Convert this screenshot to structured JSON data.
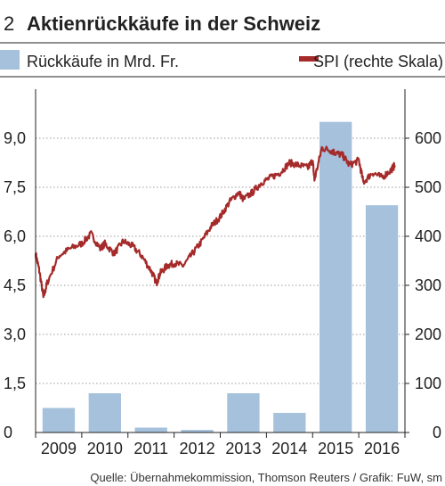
{
  "header": {
    "number": "2",
    "title": "Aktienrückkäufe in der Schweiz"
  },
  "source": "Quelle: Übernahmekommission, Thomson Reuters / Grafik: FuW, sm",
  "colors": {
    "bar": "#a6c1dc",
    "line": "#a52a2a",
    "grid": "#9a9a9a",
    "text": "#222222"
  },
  "chart_data": {
    "type": "bar",
    "categories": [
      "2009",
      "2010",
      "2011",
      "2012",
      "2013",
      "2014",
      "2015",
      "2016"
    ],
    "series": [
      {
        "name": "Rückkäufe in Mrd. Fr.",
        "type": "bar",
        "axis": "left",
        "values": [
          0.75,
          1.2,
          0.15,
          0.08,
          1.2,
          0.6,
          9.5,
          6.95
        ]
      },
      {
        "name": "SPI (rechte Skala)",
        "type": "line",
        "axis": "right",
        "x": [
          2009.0,
          2009.08,
          2009.17,
          2009.25,
          2009.5,
          2009.75,
          2010.0,
          2010.2,
          2010.4,
          2010.5,
          2010.7,
          2010.9,
          2011.1,
          2011.3,
          2011.5,
          2011.62,
          2011.7,
          2011.85,
          2012.0,
          2012.2,
          2012.4,
          2012.6,
          2012.8,
          2013.0,
          2013.2,
          2013.4,
          2013.5,
          2013.7,
          2013.9,
          2014.1,
          2014.3,
          2014.5,
          2014.7,
          2014.9,
          2015.0,
          2015.04,
          2015.2,
          2015.4,
          2015.5,
          2015.65,
          2015.8,
          2016.0,
          2016.1,
          2016.3,
          2016.5,
          2016.7,
          2016.78
        ],
        "values": [
          365,
          330,
          275,
          305,
          360,
          375,
          385,
          405,
          375,
          385,
          365,
          390,
          380,
          360,
          330,
          305,
          325,
          340,
          345,
          340,
          365,
          390,
          420,
          440,
          470,
          490,
          475,
          490,
          510,
          520,
          530,
          550,
          545,
          540,
          555,
          515,
          580,
          575,
          570,
          565,
          545,
          555,
          510,
          530,
          520,
          535,
          545
        ]
      }
    ],
    "y_left": {
      "ticks": [
        "0",
        "1,5",
        "3,0",
        "4,5",
        "6,0",
        "7,5",
        "9,0"
      ],
      "values": [
        0,
        1.5,
        3,
        4.5,
        6,
        7.5,
        9
      ],
      "ylim": [
        0,
        10.5
      ]
    },
    "y_right": {
      "ticks": [
        "0",
        "100",
        "200",
        "300",
        "400",
        "500",
        "600"
      ],
      "values": [
        0,
        100,
        200,
        300,
        400,
        500,
        600
      ],
      "ylim": [
        0,
        700
      ]
    },
    "title": "Aktienrückkäufe in der Schweiz",
    "grid": true,
    "legend_position": "top"
  }
}
